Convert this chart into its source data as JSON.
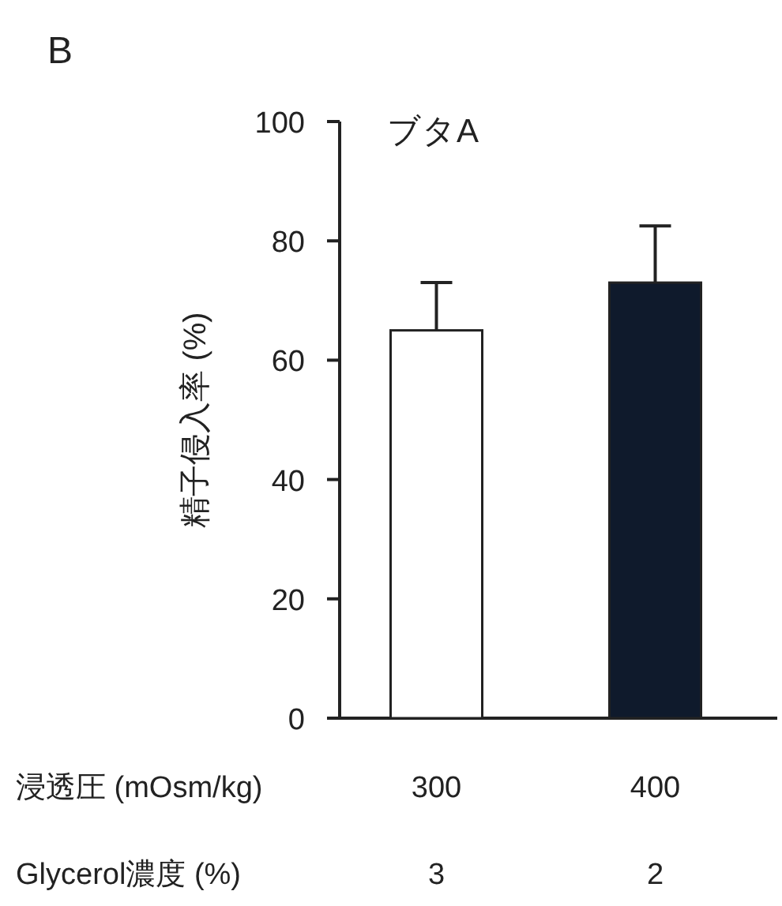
{
  "chart_data": {
    "type": "bar",
    "title": "ブタA",
    "ylabel": "精子侵入率 (%)",
    "xlabel": "浸透圧 (mOsm/kg)",
    "categories": [
      "300",
      "400"
    ],
    "values": [
      65,
      73
    ],
    "colors": [
      "#ffffff",
      "#0f1a2c"
    ],
    "errors": [
      [
        65,
        73
      ],
      [
        73,
        82.5
      ]
    ],
    "ylim": [
      0,
      100
    ],
    "yticks": [
      0,
      20,
      40,
      60,
      80,
      100
    ],
    "grid": false,
    "annotations": [
      "B",
      "Glycerol濃度 (%)",
      "3",
      "2"
    ]
  }
}
